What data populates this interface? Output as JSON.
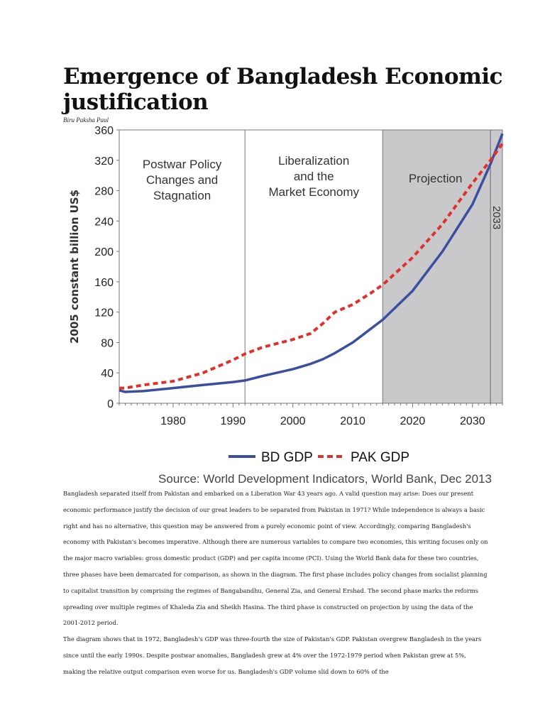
{
  "document": {
    "title": "Emergence of Bangladesh Economic justification",
    "author": "Biru Paksha Paul",
    "paragraphs": [
      "Bangladesh separated itself from Pakistan and embarked on a Liberation War 43 years ago.  A valid question may arise: Does our present economic performance justify the decision of our great leaders to be separated from Pakistan in 1971?  While independence is always a basic right and has no alternative, this question may be answered from a purely economic point of view. Accordingly, comparing Bangladesh's economy with Pakistan's becomes imperative. Although there are numerous variables to compare two economies, this writing focuses only on the major macro variables: gross domestic product (GDP) and per capita income (PCI). Using the World Bank data for these two countries, three phases have been demarcated for comparison, as shown in the diagram. The first phase includes policy changes from socialist planning to capitalist transition by comprising the regimes of Bangabandhu, General Zia, and General Ershad.  The second phase marks the reforms spreading over multiple regimes of Khaleda Zia and Sheikh Hasina. The third phase is constructed on projection by using the data of the 2001-2012 period.",
      "The diagram shows that in 1972, Bangladesh's GDP was three-fourth the size of Pakistan's GDP. Pakistan overgrew Bangladesh in the years since until the early 1990s. Despite postwar anomalies, Bangladesh grew at 4% over the 1972-1979 period when Pakistan grew at 5%, making the relative output comparison even worse for us. Bangladesh's GDP volume slid down to 60% of the"
    ]
  },
  "chart_data": {
    "type": "line",
    "ylabel": "2005 constant billion US$",
    "xlim": [
      1971,
      2035
    ],
    "ylim": [
      0,
      360
    ],
    "xticks": [
      1980,
      1990,
      2000,
      2010,
      2020,
      2030
    ],
    "yticks": [
      0,
      40,
      80,
      120,
      160,
      200,
      240,
      280,
      320,
      360
    ],
    "grid": false,
    "legend_position": "bottom",
    "source": "Source: World Development Indicators, World Bank, Dec 2013",
    "phases": [
      {
        "label_lines": [
          "Postwar Policy",
          "Changes and",
          "Stagnation"
        ],
        "from": 1971,
        "to": 1992
      },
      {
        "label_lines": [
          "Liberalization",
          "and the",
          "Market Economy"
        ],
        "from": 1992,
        "to": 2015
      },
      {
        "label_lines": [
          "Projection"
        ],
        "from": 2015,
        "to": 2035,
        "shaded": true
      }
    ],
    "marker_line": {
      "x": 2033,
      "label": "2033"
    },
    "shade_color": "#c9c9cb",
    "x": [
      1971,
      1972,
      1975,
      1980,
      1985,
      1990,
      1992,
      1995,
      2000,
      2003,
      2005,
      2007,
      2010,
      2013,
      2015,
      2020,
      2025,
      2030,
      2033,
      2035
    ],
    "series": [
      {
        "name": "BD GDP",
        "color": "#3a4fa0",
        "style": "solid",
        "values": [
          17,
          15,
          16,
          20,
          24,
          28,
          30,
          36,
          45,
          52,
          58,
          66,
          80,
          98,
          110,
          148,
          200,
          262,
          315,
          355
        ]
      },
      {
        "name": "PAK GDP",
        "color": "#e0302a",
        "style": "dashed",
        "values": [
          20,
          20,
          24,
          29,
          40,
          57,
          65,
          74,
          84,
          92,
          105,
          120,
          130,
          145,
          156,
          192,
          236,
          290,
          320,
          342
        ]
      }
    ]
  }
}
